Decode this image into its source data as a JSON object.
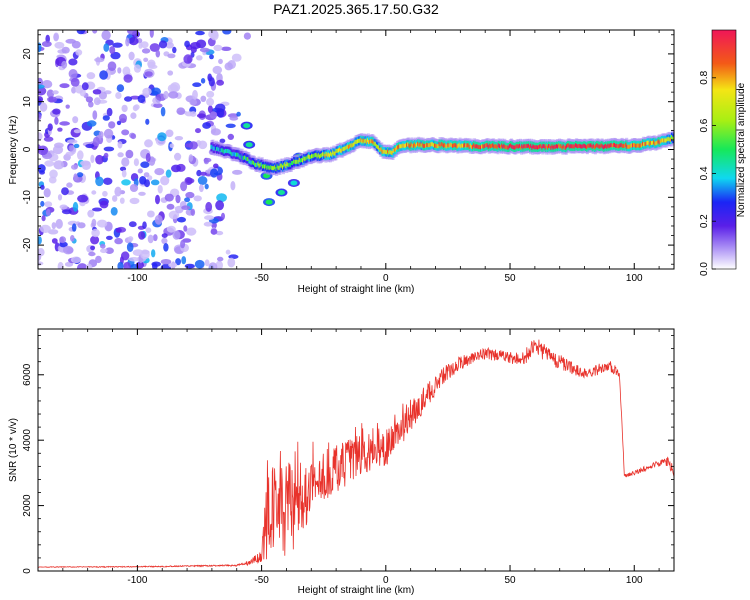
{
  "chart_data": [
    {
      "type": "heatmap",
      "title": "PAZ1.2025.365.17.50.G32",
      "xlabel": "Height of straight line (km)",
      "ylabel": "Frequency (Hz)",
      "xlim": [
        -140,
        116
      ],
      "ylim": [
        -25,
        25
      ],
      "xticks": [
        "-100",
        "-50",
        "0",
        "50",
        "100"
      ],
      "yticks": [
        "20",
        "10",
        "0",
        "-10",
        "-20"
      ],
      "colorbar": {
        "label": "Normalized spectral amplitude",
        "range": [
          0.0,
          1.0
        ],
        "ticks": [
          "0.0",
          "0.2",
          "0.4",
          "0.6",
          "0.8"
        ]
      },
      "features": {
        "noise_region_x": [
          -140,
          -55
        ],
        "ridge": [
          {
            "x": -70,
            "f": 0.5,
            "amp": 0.35
          },
          {
            "x": -60,
            "f": -1,
            "amp": 0.4
          },
          {
            "x": -52,
            "f": -3,
            "amp": 0.5
          },
          {
            "x": -45,
            "f": -4,
            "amp": 0.55
          },
          {
            "x": -38,
            "f": -3,
            "amp": 0.6
          },
          {
            "x": -30,
            "f": -1.5,
            "amp": 0.65
          },
          {
            "x": -22,
            "f": -1,
            "amp": 0.7
          },
          {
            "x": -15,
            "f": 0.5,
            "amp": 0.72
          },
          {
            "x": -10,
            "f": 2,
            "amp": 0.75
          },
          {
            "x": -5,
            "f": 1.5,
            "amp": 0.75
          },
          {
            "x": -1,
            "f": -0.5,
            "amp": 0.72
          },
          {
            "x": 3,
            "f": -0.5,
            "amp": 0.75
          },
          {
            "x": 6,
            "f": 0.8,
            "amp": 0.8
          },
          {
            "x": 15,
            "f": 1,
            "amp": 0.8
          },
          {
            "x": 30,
            "f": 0.8,
            "amp": 0.85
          },
          {
            "x": 50,
            "f": 0.6,
            "amp": 0.95
          },
          {
            "x": 70,
            "f": 0.6,
            "amp": 0.95
          },
          {
            "x": 90,
            "f": 0.7,
            "amp": 0.95
          },
          {
            "x": 100,
            "f": 0.8,
            "amp": 0.85
          },
          {
            "x": 110,
            "f": 1.5,
            "amp": 0.8
          },
          {
            "x": 116,
            "f": 2.5,
            "amp": 0.7
          }
        ],
        "blobs": [
          {
            "x": -56,
            "f": 5,
            "amp": 0.45
          },
          {
            "x": -48,
            "f": -5.5,
            "amp": 0.5
          },
          {
            "x": -42,
            "f": -9,
            "amp": 0.45
          },
          {
            "x": -47,
            "f": -11,
            "amp": 0.5
          },
          {
            "x": -37,
            "f": -7,
            "amp": 0.4
          },
          {
            "x": -55,
            "f": 1,
            "amp": 0.45
          },
          {
            "x": -35,
            "f": -1.5,
            "amp": 0.5
          }
        ]
      }
    },
    {
      "type": "line",
      "xlabel": "Height of straight line (km)",
      "ylabel": "SNR (10 * v/v)",
      "xlim": [
        -140,
        116
      ],
      "ylim": [
        0,
        7400
      ],
      "xticks": [
        "-100",
        "-50",
        "0",
        "50",
        "100"
      ],
      "yticks": [
        "0",
        "2000",
        "4000",
        "6000"
      ],
      "series": [
        {
          "name": "SNR",
          "color": "#e8322b",
          "x": [
            -140,
            -100,
            -60,
            -55,
            -50,
            -48,
            -46,
            -44,
            -42,
            -40,
            -38,
            -36,
            -34,
            -32,
            -30,
            -25,
            -20,
            -15,
            -10,
            -5,
            0,
            5,
            10,
            15,
            20,
            25,
            30,
            35,
            40,
            45,
            50,
            55,
            58,
            60,
            62,
            65,
            70,
            75,
            80,
            85,
            90,
            94,
            95,
            96,
            100,
            105,
            110,
            114,
            116
          ],
          "y": [
            120,
            130,
            170,
            250,
            450,
            1300,
            1800,
            2200,
            1900,
            1700,
            1900,
            2100,
            2300,
            2400,
            2600,
            2900,
            3100,
            3350,
            3550,
            3700,
            3750,
            4200,
            4700,
            5200,
            5700,
            6100,
            6350,
            6550,
            6650,
            6600,
            6500,
            6500,
            6700,
            6900,
            6800,
            6600,
            6400,
            6200,
            6050,
            6150,
            6300,
            6000,
            4600,
            2900,
            3000,
            3150,
            3300,
            3350,
            3000
          ],
          "noise": [
            10,
            15,
            25,
            80,
            200,
            1400,
            1500,
            1500,
            1500,
            1400,
            1400,
            1200,
            1100,
            1000,
            900,
            800,
            750,
            700,
            650,
            600,
            550,
            500,
            450,
            400,
            300,
            250,
            220,
            200,
            180,
            180,
            190,
            230,
            260,
            300,
            280,
            250,
            220,
            200,
            180,
            170,
            170,
            150,
            80,
            60,
            70,
            80,
            90,
            150,
            200
          ]
        }
      ]
    }
  ]
}
